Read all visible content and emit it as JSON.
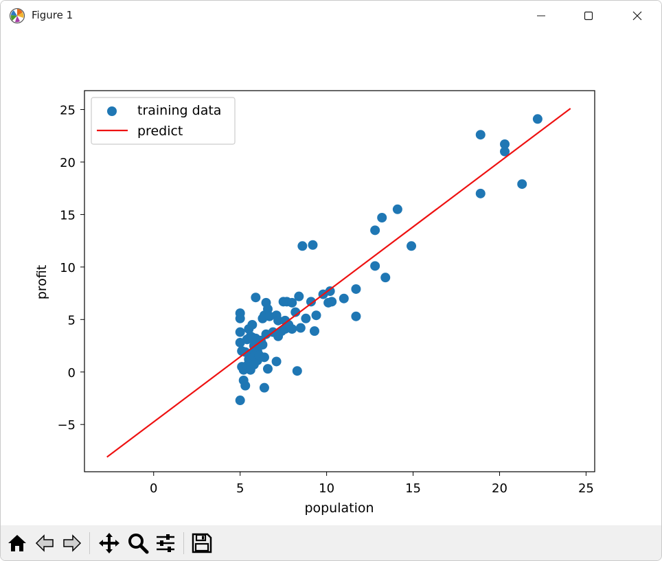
{
  "window": {
    "title": "Figure 1",
    "app_icon": "matplotlib-logo-icon",
    "controls": [
      "minimize-icon",
      "maximize-icon",
      "close-icon"
    ]
  },
  "toolbar": {
    "buttons": [
      "home-icon",
      "back-arrow-icon",
      "forward-arrow-icon",
      "pan-move-icon",
      "zoom-magnifier-icon",
      "configure-subplots-icon",
      "save-floppy-icon"
    ]
  },
  "chart_data": {
    "type": "scatter",
    "xlabel": "population",
    "ylabel": "profit",
    "xlim": [
      -4,
      25.5
    ],
    "ylim": [
      -9.5,
      26.8
    ],
    "xticks": [
      0,
      5,
      10,
      15,
      20,
      25
    ],
    "xtick_labels": [
      "0",
      "5",
      "10",
      "15",
      "20",
      "25"
    ],
    "yticks": [
      -5,
      0,
      5,
      10,
      15,
      20,
      25
    ],
    "ytick_labels": [
      "−5",
      "0",
      "5",
      "10",
      "15",
      "20",
      "25"
    ],
    "grid": false,
    "legend": {
      "placement": "upper-left",
      "entries": [
        "training data",
        "predict"
      ]
    },
    "colors": {
      "scatter": "#1f77b4",
      "line": "#ee1111",
      "axes": "#000000"
    },
    "series": [
      {
        "name": "training data",
        "kind": "scatter",
        "points": [
          [
            5.0,
            -2.7
          ],
          [
            5.0,
            2.8
          ],
          [
            5.0,
            3.8
          ],
          [
            5.0,
            5.1
          ],
          [
            5.0,
            5.6
          ],
          [
            5.1,
            0.5
          ],
          [
            5.1,
            2.0
          ],
          [
            5.2,
            0.2
          ],
          [
            5.2,
            -0.8
          ],
          [
            5.3,
            -1.3
          ],
          [
            5.3,
            1.9
          ],
          [
            5.4,
            0.6
          ],
          [
            5.4,
            3.1
          ],
          [
            5.5,
            1.2
          ],
          [
            5.5,
            4.1
          ],
          [
            5.6,
            0.9
          ],
          [
            5.6,
            3.4
          ],
          [
            5.6,
            0.2
          ],
          [
            5.7,
            1.7
          ],
          [
            5.7,
            4.5
          ],
          [
            5.7,
            3.3
          ],
          [
            5.8,
            1.5
          ],
          [
            5.8,
            2.5
          ],
          [
            5.8,
            0.7
          ],
          [
            5.9,
            7.1
          ],
          [
            5.9,
            3.2
          ],
          [
            6.0,
            2.0
          ],
          [
            6.0,
            1.1
          ],
          [
            6.1,
            2.6
          ],
          [
            6.1,
            1.6
          ],
          [
            6.2,
            3.0
          ],
          [
            6.3,
            2.6
          ],
          [
            6.3,
            5.1
          ],
          [
            6.4,
            1.4
          ],
          [
            6.4,
            5.4
          ],
          [
            6.4,
            -1.5
          ],
          [
            6.5,
            3.6
          ],
          [
            6.5,
            6.6
          ],
          [
            6.6,
            0.3
          ],
          [
            6.6,
            6.0
          ],
          [
            6.7,
            5.3
          ],
          [
            6.9,
            3.8
          ],
          [
            7.1,
            5.4
          ],
          [
            7.1,
            1.0
          ],
          [
            7.2,
            4.9
          ],
          [
            7.2,
            3.4
          ],
          [
            7.4,
            3.9
          ],
          [
            7.5,
            6.7
          ],
          [
            7.6,
            4.1
          ],
          [
            7.6,
            4.9
          ],
          [
            7.7,
            6.7
          ],
          [
            7.8,
            4.5
          ],
          [
            8.0,
            4.1
          ],
          [
            8.0,
            6.6
          ],
          [
            8.2,
            5.7
          ],
          [
            8.3,
            0.1
          ],
          [
            8.4,
            7.2
          ],
          [
            8.5,
            4.2
          ],
          [
            8.6,
            12.0
          ],
          [
            8.8,
            5.1
          ],
          [
            9.1,
            6.7
          ],
          [
            9.2,
            12.1
          ],
          [
            9.3,
            3.9
          ],
          [
            9.4,
            5.4
          ],
          [
            9.8,
            7.4
          ],
          [
            10.1,
            6.6
          ],
          [
            10.2,
            7.7
          ],
          [
            10.3,
            6.7
          ],
          [
            11.0,
            7.0
          ],
          [
            11.7,
            7.9
          ],
          [
            11.7,
            5.3
          ],
          [
            12.8,
            13.5
          ],
          [
            12.8,
            10.1
          ],
          [
            13.2,
            14.7
          ],
          [
            13.4,
            9.0
          ],
          [
            14.1,
            15.5
          ],
          [
            14.9,
            12.0
          ],
          [
            18.9,
            22.6
          ],
          [
            18.9,
            17.0
          ],
          [
            20.3,
            21.7
          ],
          [
            20.3,
            21.0
          ],
          [
            21.3,
            17.9
          ],
          [
            22.2,
            24.1
          ]
        ]
      },
      {
        "name": "predict",
        "kind": "line",
        "points": [
          [
            -2.7,
            -8.1
          ],
          [
            24.1,
            25.1
          ]
        ]
      }
    ]
  }
}
